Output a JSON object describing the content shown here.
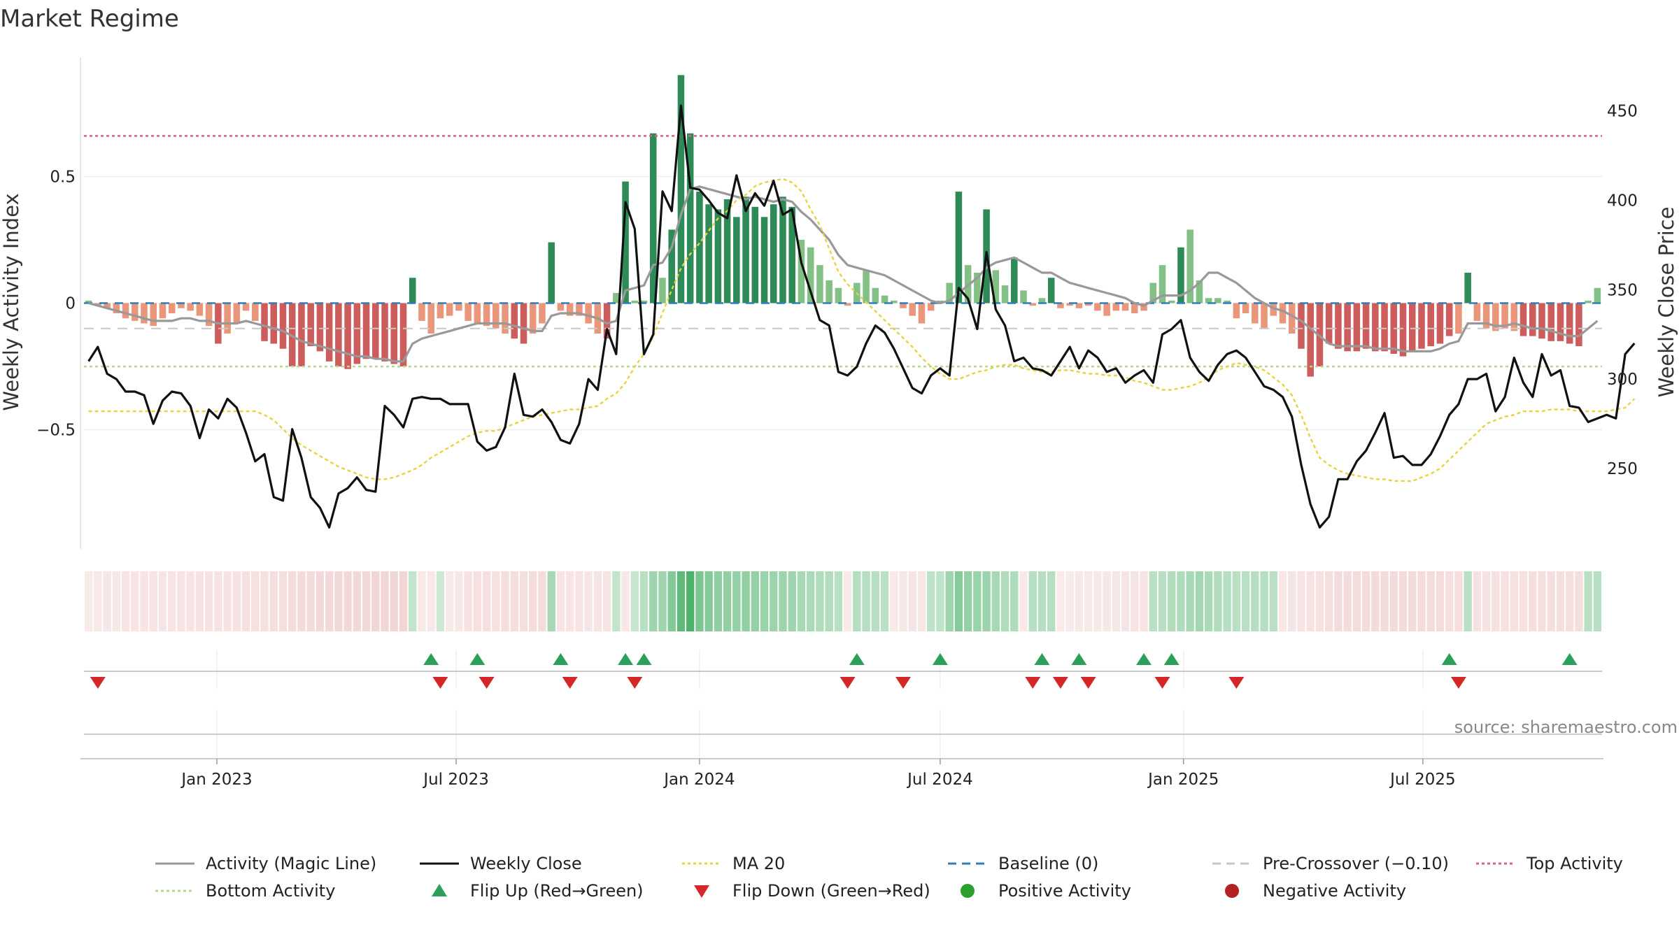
{
  "title": "Market Regime",
  "source": "source: sharemaestro.com",
  "chart_data": {
    "type": "bar",
    "x_start": "2022-09-26",
    "x_interval_days": 7,
    "x_ticks": [
      "Jan 2023",
      "Jul 2023",
      "Jan 2024",
      "Jul 2024",
      "Jan 2025",
      "Jul 2025"
    ],
    "x_tick_dates": [
      "2023-01-01",
      "2023-07-01",
      "2024-01-01",
      "2024-07-01",
      "2025-01-01",
      "2025-07-01"
    ],
    "y_left": {
      "label": "Weekly Activity Index",
      "range": [
        -0.97,
        0.97
      ],
      "ticks": [
        -0.5,
        0,
        0.5
      ],
      "tick_labels": [
        "−0.5",
        "0",
        "0.5"
      ]
    },
    "y_right": {
      "label": "Weekly Close Price",
      "range": [
        205,
        480
      ],
      "ticks": [
        250,
        300,
        350,
        400,
        450
      ],
      "tick_labels": [
        "250",
        "300",
        "350",
        "400",
        "450"
      ]
    },
    "activity": [
      0.01,
      -0.01,
      -0.02,
      -0.04,
      -0.06,
      -0.07,
      -0.08,
      -0.09,
      -0.06,
      -0.04,
      -0.02,
      -0.03,
      -0.05,
      -0.09,
      -0.16,
      -0.12,
      -0.08,
      -0.03,
      -0.07,
      -0.15,
      -0.16,
      -0.18,
      -0.25,
      -0.25,
      -0.17,
      -0.19,
      -0.23,
      -0.25,
      -0.26,
      -0.24,
      -0.22,
      -0.22,
      -0.23,
      -0.24,
      -0.25,
      0.1,
      -0.07,
      -0.12,
      -0.06,
      -0.05,
      -0.03,
      -0.07,
      -0.08,
      -0.09,
      -0.1,
      -0.12,
      -0.14,
      -0.16,
      -0.12,
      -0.08,
      0.24,
      -0.03,
      -0.05,
      -0.05,
      -0.08,
      -0.12,
      -0.14,
      0.04,
      0.48,
      0.01,
      0.01,
      0.67,
      0.1,
      0.29,
      0.9,
      0.67,
      0.44,
      0.39,
      0.37,
      0.41,
      0.34,
      0.42,
      0.38,
      0.34,
      0.39,
      0.42,
      0.38,
      0.25,
      0.22,
      0.15,
      0.09,
      0.06,
      -0.01,
      0.08,
      0.13,
      0.06,
      0.03,
      0.01,
      -0.02,
      -0.05,
      -0.08,
      -0.03,
      0.01,
      0.08,
      0.44,
      0.15,
      0.12,
      0.37,
      0.13,
      0.07,
      0.18,
      0.05,
      -0.01,
      0.02,
      0.1,
      -0.02,
      -0.01,
      -0.02,
      -0.01,
      -0.03,
      -0.05,
      -0.03,
      -0.03,
      -0.04,
      -0.03,
      0.08,
      0.15,
      0.01,
      0.22,
      0.29,
      0.09,
      0.02,
      0.02,
      0.01,
      -0.06,
      -0.04,
      -0.08,
      -0.1,
      -0.05,
      -0.08,
      -0.12,
      -0.18,
      -0.29,
      -0.25,
      -0.16,
      -0.18,
      -0.19,
      -0.19,
      -0.18,
      -0.19,
      -0.19,
      -0.2,
      -0.21,
      -0.19,
      -0.18,
      -0.17,
      -0.16,
      -0.13,
      -0.12,
      0.12,
      -0.07,
      -0.1,
      -0.11,
      -0.1,
      -0.11,
      -0.13,
      -0.13,
      -0.14,
      -0.15,
      -0.15,
      -0.16,
      -0.17,
      0.01,
      0.06
    ],
    "close": [
      310,
      318,
      303,
      300,
      293,
      293,
      291,
      275,
      288,
      293,
      292,
      285,
      267,
      283,
      278,
      289,
      284,
      270,
      254,
      258,
      234,
      232,
      272,
      256,
      234,
      228,
      217,
      236,
      239,
      245,
      238,
      237,
      285,
      280,
      273,
      289,
      290,
      289,
      289,
      286,
      286,
      286,
      265,
      260,
      262,
      273,
      303,
      280,
      279,
      283,
      276,
      266,
      264,
      275,
      300,
      294,
      328,
      314,
      399,
      384,
      314,
      325,
      405,
      394,
      453,
      407,
      406,
      400,
      393,
      390,
      414,
      394,
      404,
      397,
      411,
      392,
      395,
      365,
      349,
      333,
      330,
      304,
      302,
      307,
      320,
      330,
      326,
      317,
      306,
      295,
      292,
      302,
      306,
      302,
      351,
      345,
      328,
      371,
      339,
      330,
      310,
      312,
      306,
      305,
      302,
      310,
      318,
      306,
      316,
      312,
      304,
      306,
      298,
      302,
      305,
      298,
      325,
      328,
      333,
      312,
      304,
      299,
      308,
      314,
      316,
      312,
      304,
      296,
      294,
      290,
      279,
      252,
      230,
      217,
      223,
      244,
      244,
      254,
      260,
      270,
      281,
      256,
      257,
      252,
      252,
      258,
      268,
      280,
      286,
      300,
      300,
      303,
      282,
      290,
      312,
      298,
      290,
      314,
      302,
      305,
      285,
      284,
      276,
      278,
      280,
      278,
      314,
      320
    ],
    "ma20": [
      282,
      282,
      282,
      282,
      282,
      282,
      282,
      282,
      282,
      282,
      282,
      282,
      282,
      282,
      282,
      282,
      282,
      282,
      282,
      280,
      277,
      272,
      267,
      263,
      260,
      257,
      254,
      251,
      249,
      247,
      245,
      244,
      244,
      245,
      247,
      249,
      252,
      256,
      259,
      262,
      265,
      268,
      270,
      271,
      271,
      273,
      275,
      277,
      279,
      280,
      281,
      282,
      283,
      283,
      284,
      285,
      289,
      292,
      298,
      307,
      314,
      324,
      337,
      350,
      362,
      370,
      376,
      383,
      390,
      394,
      400,
      403,
      408,
      410,
      411,
      412,
      410,
      405,
      395,
      386,
      373,
      360,
      353,
      348,
      343,
      338,
      333,
      328,
      323,
      318,
      312,
      307,
      303,
      300,
      300,
      302,
      304,
      305,
      307,
      308,
      308,
      306,
      305,
      304,
      304,
      305,
      305,
      304,
      303,
      303,
      302,
      302,
      301,
      299,
      298,
      296,
      294,
      294,
      295,
      296,
      298,
      301,
      305,
      307,
      309,
      308,
      307,
      305,
      301,
      297,
      291,
      280,
      267,
      256,
      252,
      249,
      247,
      246,
      245,
      244,
      244,
      243,
      243,
      243,
      245,
      247,
      250,
      255,
      260,
      265,
      270,
      275,
      277,
      279,
      280,
      282,
      282,
      282,
      283,
      283,
      283,
      282,
      282,
      282,
      282,
      283,
      284,
      289
    ],
    "magic": [
      0.0,
      -0.01,
      -0.02,
      -0.03,
      -0.04,
      -0.05,
      -0.06,
      -0.07,
      -0.07,
      -0.07,
      -0.06,
      -0.06,
      -0.07,
      -0.07,
      -0.08,
      -0.08,
      -0.08,
      -0.07,
      -0.08,
      -0.09,
      -0.1,
      -0.11,
      -0.13,
      -0.15,
      -0.16,
      -0.17,
      -0.18,
      -0.19,
      -0.2,
      -0.21,
      -0.21,
      -0.22,
      -0.22,
      -0.23,
      -0.23,
      -0.16,
      -0.14,
      -0.13,
      -0.12,
      -0.11,
      -0.1,
      -0.09,
      -0.08,
      -0.08,
      -0.08,
      -0.08,
      -0.09,
      -0.1,
      -0.11,
      -0.11,
      -0.05,
      -0.04,
      -0.04,
      -0.04,
      -0.05,
      -0.06,
      -0.08,
      -0.07,
      0.05,
      0.06,
      0.07,
      0.15,
      0.16,
      0.22,
      0.35,
      0.45,
      0.46,
      0.45,
      0.44,
      0.43,
      0.42,
      0.41,
      0.42,
      0.41,
      0.4,
      0.41,
      0.4,
      0.36,
      0.33,
      0.29,
      0.25,
      0.19,
      0.15,
      0.14,
      0.13,
      0.12,
      0.11,
      0.09,
      0.07,
      0.05,
      0.03,
      0.01,
      0.0,
      0.01,
      0.04,
      0.07,
      0.1,
      0.14,
      0.16,
      0.17,
      0.18,
      0.16,
      0.14,
      0.12,
      0.12,
      0.1,
      0.08,
      0.07,
      0.06,
      0.05,
      0.04,
      0.03,
      0.02,
      0.0,
      -0.01,
      0.01,
      0.03,
      0.03,
      0.03,
      0.05,
      0.08,
      0.12,
      0.12,
      0.1,
      0.08,
      0.05,
      0.02,
      0.0,
      -0.02,
      -0.03,
      -0.05,
      -0.07,
      -0.1,
      -0.13,
      -0.16,
      -0.17,
      -0.17,
      -0.17,
      -0.17,
      -0.18,
      -0.18,
      -0.18,
      -0.19,
      -0.19,
      -0.19,
      -0.19,
      -0.18,
      -0.16,
      -0.15,
      -0.08,
      -0.08,
      -0.08,
      -0.09,
      -0.09,
      -0.08,
      -0.09,
      -0.1,
      -0.1,
      -0.11,
      -0.12,
      -0.13,
      -0.13,
      -0.1,
      -0.07
    ],
    "regime": [
      -0.06,
      -0.09,
      -0.1,
      -0.11,
      -0.12,
      -0.12,
      -0.13,
      -0.13,
      -0.14,
      -0.14,
      -0.15,
      -0.15,
      -0.16,
      -0.16,
      -0.17,
      -0.17,
      -0.17,
      -0.18,
      -0.18,
      -0.19,
      -0.2,
      -0.21,
      -0.23,
      -0.24,
      -0.25,
      -0.26,
      -0.27,
      -0.28,
      -0.28,
      -0.29,
      -0.29,
      -0.3,
      -0.3,
      -0.3,
      -0.3,
      0.14,
      -0.08,
      -0.09,
      0.09,
      -0.08,
      -0.1,
      -0.16,
      -0.18,
      -0.18,
      -0.19,
      -0.2,
      -0.21,
      -0.21,
      -0.22,
      -0.22,
      0.31,
      -0.15,
      -0.15,
      -0.14,
      -0.13,
      -0.12,
      -0.12,
      0.14,
      -0.1,
      0.12,
      0.2,
      0.35,
      0.35,
      0.5,
      0.7,
      0.8,
      0.55,
      0.5,
      0.45,
      0.42,
      0.4,
      0.42,
      0.4,
      0.38,
      0.37,
      0.36,
      0.35,
      0.3,
      0.28,
      0.26,
      0.24,
      0.2,
      -0.07,
      0.22,
      0.22,
      0.22,
      0.2,
      -0.08,
      -0.1,
      -0.12,
      -0.11,
      0.18,
      0.17,
      0.35,
      0.48,
      0.4,
      0.38,
      0.36,
      0.3,
      0.26,
      0.26,
      -0.08,
      0.22,
      0.22,
      0.22,
      -0.05,
      -0.07,
      -0.08,
      -0.08,
      -0.09,
      -0.1,
      -0.11,
      -0.12,
      -0.13,
      -0.14,
      0.2,
      0.22,
      0.24,
      0.26,
      0.3,
      0.32,
      0.28,
      0.25,
      0.22,
      0.2,
      0.2,
      0.22,
      0.22,
      0.2,
      -0.1,
      -0.12,
      -0.14,
      -0.16,
      -0.18,
      -0.2,
      -0.22,
      -0.22,
      -0.23,
      -0.23,
      -0.24,
      -0.24,
      -0.24,
      -0.24,
      -0.24,
      -0.23,
      -0.22,
      -0.22,
      -0.21,
      -0.2,
      0.2,
      -0.16,
      -0.17,
      -0.18,
      -0.18,
      -0.19,
      -0.19,
      -0.2,
      -0.2,
      -0.2,
      -0.2,
      -0.2,
      -0.21,
      0.2,
      0.21
    ],
    "flip_up_weeks": [
      37,
      42,
      51,
      58,
      60,
      83,
      92,
      103,
      107,
      114,
      117,
      147,
      160
    ],
    "flip_down_weeks": [
      1,
      38,
      43,
      52,
      59,
      82,
      88,
      102,
      105,
      108,
      116,
      124,
      148
    ],
    "baseline": 0,
    "pre_crossover": -0.1,
    "top_activity": 0.66,
    "bottom_activity": -0.25,
    "colors": {
      "pos_strong": "#2e8b57",
      "pos_weak": "#82c085",
      "neg_strong": "#cd5c5c",
      "neg_weak": "#e9967a",
      "magic": "#999999",
      "close": "#111111",
      "ma20": "#e8d33f",
      "baseline": "#2f7fb5",
      "pre": "#c8c8c8",
      "top": "#d9667a",
      "bottom": "#b6d98f",
      "flip_up": "#2ca05a",
      "flip_down": "#d62728"
    },
    "legend_position": "bottom",
    "legend": [
      {
        "label": "Activity (Magic Line)",
        "kind": "line",
        "color": "#999999",
        "dash": ""
      },
      {
        "label": "Weekly Close",
        "kind": "line",
        "color": "#111111",
        "dash": ""
      },
      {
        "label": "MA 20",
        "kind": "line",
        "color": "#e8d33f",
        "dash": "4 4"
      },
      {
        "label": "Baseline (0)",
        "kind": "line",
        "color": "#2f7fb5",
        "dash": "12 8"
      },
      {
        "label": "Pre-Crossover (−0.10)",
        "kind": "line",
        "color": "#c8c8c8",
        "dash": "12 8"
      },
      {
        "label": "Top Activity",
        "kind": "line",
        "color": "#d9667a",
        "dash": "4 4"
      },
      {
        "label": "Bottom Activity",
        "kind": "line",
        "color": "#b6d98f",
        "dash": "4 4"
      },
      {
        "label": "Flip Up (Red→Green)",
        "kind": "tri-up",
        "color": "#2ca05a",
        "dash": ""
      },
      {
        "label": "Flip Down (Green→Red)",
        "kind": "tri-down",
        "color": "#d62728",
        "dash": ""
      },
      {
        "label": "Positive Activity",
        "kind": "dot",
        "color": "#2ca02c",
        "dash": ""
      },
      {
        "label": "Negative Activity",
        "kind": "dot",
        "color": "#b22222",
        "dash": ""
      }
    ]
  }
}
